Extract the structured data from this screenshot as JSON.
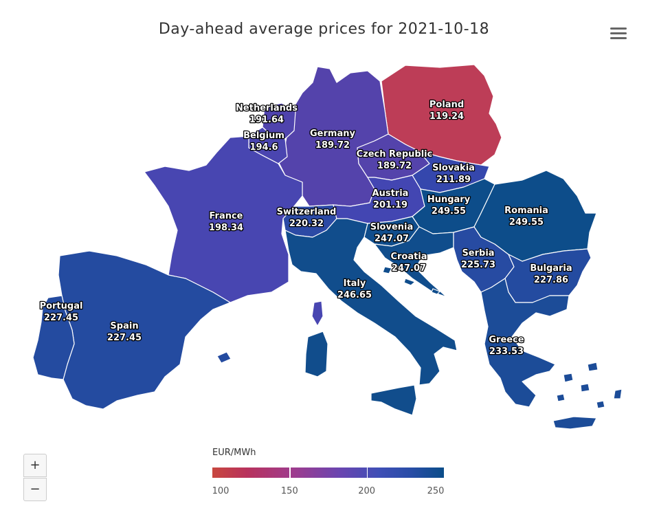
{
  "title": "Day-ahead average prices for 2021-10-18",
  "menu": {
    "icon": "hamburger-menu-icon"
  },
  "zoom": {
    "in_label": "+",
    "out_label": "−"
  },
  "legend": {
    "title": "EUR/MWh",
    "min": 100,
    "max": 250,
    "ticks": [
      "100",
      "150",
      "200",
      "250"
    ],
    "colors": {
      "low": "#c8473f",
      "mid": "#6a45b0",
      "high": "#0b4d89"
    }
  },
  "countries": [
    {
      "name": "Poland",
      "value": "119.24",
      "color": "#bd3d57"
    },
    {
      "name": "Netherlands",
      "value": "191.64",
      "color": "#4f43ad"
    },
    {
      "name": "Belgium",
      "value": "194.6",
      "color": "#4a45b0"
    },
    {
      "name": "Germany",
      "value": "189.72",
      "color": "#5443ab"
    },
    {
      "name": "Czech Republic",
      "value": "189.72",
      "color": "#5443ab"
    },
    {
      "name": "Slovakia",
      "value": "211.89",
      "color": "#3547ad"
    },
    {
      "name": "France",
      "value": "198.34",
      "color": "#4846b1"
    },
    {
      "name": "Switzerland",
      "value": "220.32",
      "color": "#2c4aa5"
    },
    {
      "name": "Austria",
      "value": "201.19",
      "color": "#4346b2"
    },
    {
      "name": "Hungary",
      "value": "249.55",
      "color": "#0d4d8a"
    },
    {
      "name": "Romania",
      "value": "249.55",
      "color": "#0d4d8a"
    },
    {
      "name": "Slovenia",
      "value": "247.07",
      "color": "#104d8c"
    },
    {
      "name": "Croatia",
      "value": "247.07",
      "color": "#104d8c"
    },
    {
      "name": "Serbia",
      "value": "225.73",
      "color": "#274ba2"
    },
    {
      "name": "Bulgaria",
      "value": "227.86",
      "color": "#244ba0"
    },
    {
      "name": "Italy",
      "value": "246.65",
      "color": "#114d8c"
    },
    {
      "name": "Portugal",
      "value": "227.45",
      "color": "#244ba0"
    },
    {
      "name": "Spain",
      "value": "227.45",
      "color": "#244ba0"
    },
    {
      "name": "Greece",
      "value": "233.53",
      "color": "#1c4c98"
    }
  ]
}
